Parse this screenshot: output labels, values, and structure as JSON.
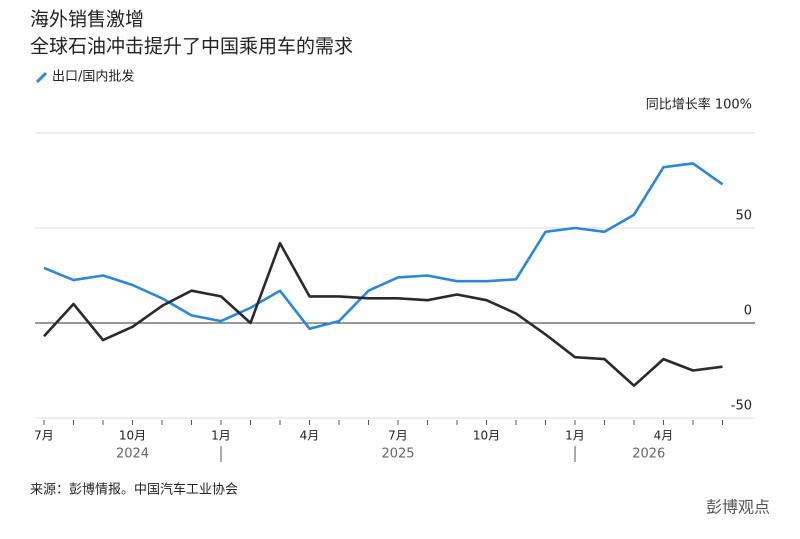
{
  "chart_data": {
    "type": "line",
    "title": "海外销售激增",
    "subtitle": "全球石油冲击提升了中国乘用车的需求",
    "categories": [
      "7月",
      null,
      null,
      "10月",
      null,
      null,
      "1月",
      null,
      null,
      "4月",
      null,
      null,
      "7月",
      null,
      null,
      "10月",
      null,
      null,
      "1月",
      null,
      null,
      "4月",
      null,
      null
    ],
    "years": [
      "2024",
      "2025",
      "2026"
    ],
    "series": [
      {
        "name": "出口/国内批发",
        "color": "#2b86e0",
        "values": [
          29,
          22.6,
          25,
          20,
          13,
          4,
          1,
          8,
          17,
          -3,
          1,
          17,
          24,
          25,
          22,
          22,
          23,
          48,
          50,
          48,
          57,
          82,
          84,
          73
        ]
      },
      {
        "color": "#2a2a2a",
        "values": [
          -7,
          10,
          -9,
          -2,
          9,
          17,
          14,
          0,
          42,
          14,
          14,
          13,
          13,
          12,
          15,
          12,
          5,
          -6,
          -18,
          -19,
          -33,
          -19,
          -25,
          -23
        ]
      }
    ],
    "ylim": [
      -50,
      100
    ],
    "yticks": [
      -50,
      0,
      50,
      {
        "value": 100,
        "label": "同比增长率 100%"
      }
    ],
    "grid": true,
    "source": "来源：彭博情报。中国汽车工业协会",
    "watermark": "彭博观点"
  }
}
